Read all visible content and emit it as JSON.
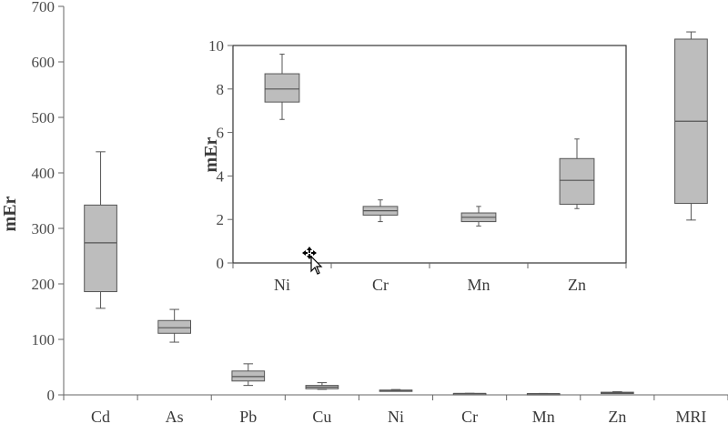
{
  "chart_data": [
    {
      "type": "box",
      "ylabel": "mEr",
      "ylim": [
        0,
        700
      ],
      "yticks": [
        0,
        100,
        200,
        300,
        400,
        500,
        600,
        700
      ],
      "categories": [
        "Cd",
        "As",
        "Pb",
        "Cu",
        "Ni",
        "Cr",
        "Mn",
        "Zn",
        "MRI"
      ],
      "boxes": [
        {
          "category": "Cd",
          "min": 156,
          "q1": 186,
          "median": 274,
          "q3": 342,
          "max": 438
        },
        {
          "category": "As",
          "min": 95,
          "q1": 111,
          "median": 121,
          "q3": 134,
          "max": 154
        },
        {
          "category": "Pb",
          "min": 17,
          "q1": 25,
          "median": 33,
          "q3": 43,
          "max": 56
        },
        {
          "category": "Cu",
          "min": 10,
          "q1": 11,
          "median": 14,
          "q3": 17,
          "max": 22
        },
        {
          "category": "Ni",
          "min": 6.6,
          "q1": 7.4,
          "median": 8.0,
          "q3": 8.7,
          "max": 9.6
        },
        {
          "category": "Cr",
          "min": 1.9,
          "q1": 2.2,
          "median": 2.4,
          "q3": 2.6,
          "max": 2.9
        },
        {
          "category": "Mn",
          "min": 1.7,
          "q1": 1.9,
          "median": 2.1,
          "q3": 2.3,
          "max": 2.6
        },
        {
          "category": "Zn",
          "min": 2.5,
          "q1": 2.7,
          "median": 3.8,
          "q3": 4.8,
          "max": 5.7
        },
        {
          "category": "MRI",
          "min": 315,
          "q1": 345,
          "median": 493,
          "q3": 641,
          "max": 654
        }
      ]
    },
    {
      "type": "box",
      "ylabel": "mEr",
      "ylim": [
        0,
        10
      ],
      "yticks": [
        0,
        2,
        4,
        6,
        8,
        10
      ],
      "categories": [
        "Ni",
        "Cr",
        "Mn",
        "Zn"
      ],
      "boxes": [
        {
          "category": "Ni",
          "min": 6.6,
          "q1": 7.4,
          "median": 8.0,
          "q3": 8.7,
          "max": 9.6
        },
        {
          "category": "Cr",
          "min": 1.9,
          "q1": 2.2,
          "median": 2.4,
          "q3": 2.6,
          "max": 2.9
        },
        {
          "category": "Mn",
          "min": 1.7,
          "q1": 1.9,
          "median": 2.1,
          "q3": 2.3,
          "max": 2.6
        },
        {
          "category": "Zn",
          "min": 2.5,
          "q1": 2.7,
          "median": 3.8,
          "q3": 4.8,
          "max": 5.7
        }
      ]
    }
  ],
  "colors": {
    "box_fill": "#bdbdbd",
    "stroke": "#555555"
  },
  "cursor_icon": "move-cursor-icon"
}
